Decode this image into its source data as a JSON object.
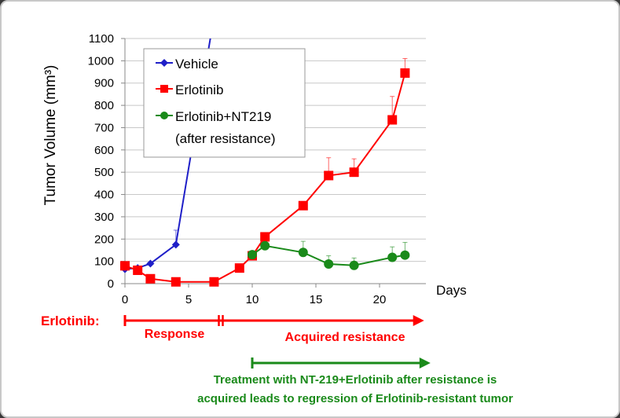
{
  "chart_data": {
    "type": "line",
    "ylabel": "Tumor Volume (mm³)",
    "xlabel": "Days",
    "xlim": [
      0,
      23.5
    ],
    "ylim": [
      0,
      1100
    ],
    "xticks": [
      0,
      5,
      10,
      15,
      20
    ],
    "yticks": [
      0,
      100,
      200,
      300,
      400,
      500,
      600,
      700,
      800,
      900,
      1000,
      1100
    ],
    "grid": "horizontal",
    "legend_position": "top-left",
    "series": [
      {
        "name": "Vehicle",
        "color": "#1f1fc8",
        "marker": "diamond",
        "x": [
          0,
          1,
          2,
          4,
          7
        ],
        "y": [
          65,
          70,
          90,
          175,
          1200
        ],
        "err": [
          0,
          0,
          0,
          65,
          0
        ]
      },
      {
        "name": "Erlotinib",
        "color": "#ff0000",
        "marker": "square",
        "x": [
          0,
          1,
          2,
          4,
          7,
          9,
          10,
          11,
          14,
          16,
          18,
          21,
          22
        ],
        "y": [
          80,
          60,
          22,
          8,
          8,
          70,
          125,
          210,
          350,
          485,
          500,
          735,
          945
        ],
        "err": [
          0,
          0,
          0,
          0,
          0,
          0,
          0,
          0,
          0,
          80,
          60,
          105,
          65
        ]
      },
      {
        "name": "Erlotinib+NT219",
        "name_line2": "(after resistance)",
        "color": "#1a8a1a",
        "marker": "circle",
        "x": [
          10,
          11,
          14,
          16,
          18,
          21,
          22
        ],
        "y": [
          130,
          170,
          140,
          88,
          82,
          118,
          128
        ],
        "err": [
          0,
          0,
          50,
          37,
          33,
          47,
          57
        ]
      }
    ]
  },
  "annotations": {
    "drug_label": "Erlotinib:",
    "phase1": "Response",
    "phase2": "Acquired resistance",
    "phase1_range_days": [
      0,
      7.5
    ],
    "phase2_range_days": [
      7.5,
      23.5
    ],
    "treatment_range_days": [
      10,
      24
    ],
    "treatment_line1": "Treatment with NT-219+Erlotinib  after resistance is",
    "treatment_line2": "acquired leads to regression of Erlotinib-resistant tumor",
    "red": "#ff0000",
    "green": "#1a8a1a"
  }
}
